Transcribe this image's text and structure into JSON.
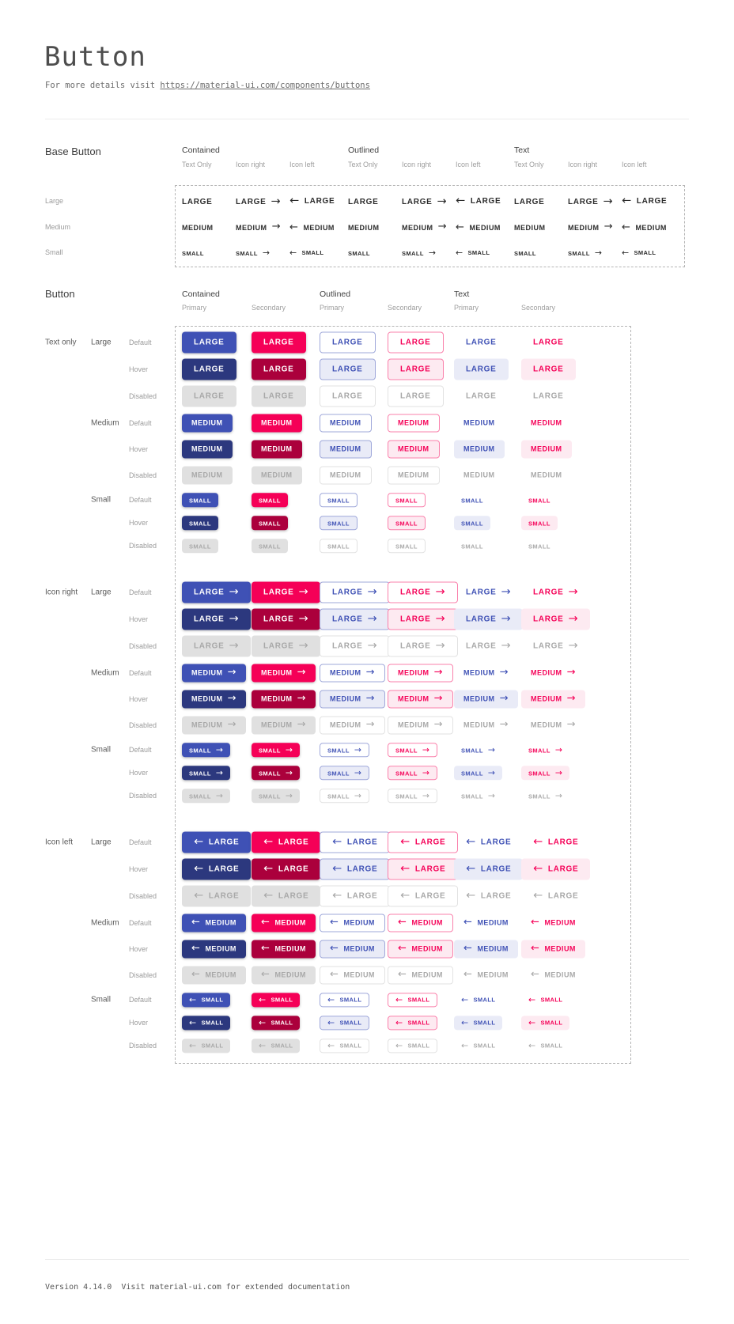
{
  "page": {
    "title": "Button",
    "subtitle_prefix": "For more details visit ",
    "subtitle_link": "https://material-ui.com/components/buttons"
  },
  "colors": {
    "primary": "#3f51b5",
    "primary_hover": "#2c387e",
    "primary_border": "#9fa8da",
    "primary_tint": "#e9ebf7",
    "secondary": "#f50057",
    "secondary_hover": "#ab003c",
    "secondary_border": "#fa80ab",
    "secondary_tint": "#fdeaf1",
    "disabled_bg": "#e0e0e0",
    "disabled_text": "#a8a8a8",
    "disabled_border": "#e2e2e2",
    "base_text": "#2b2b2b"
  },
  "icons": {
    "arrow_right": "→",
    "arrow_left": "←"
  },
  "base_section": {
    "heading": "Base Button",
    "groups": [
      {
        "label": "Contained"
      },
      {
        "label": "Outlined"
      },
      {
        "label": "Text"
      }
    ],
    "subcolumns": [
      "Text Only",
      "Icon right",
      "Icon left"
    ],
    "rows": [
      {
        "label": "Large",
        "text": "LARGE",
        "size": "large"
      },
      {
        "label": "Medium",
        "text": "MEDIUM",
        "size": "medium"
      },
      {
        "label": "Small",
        "text": "SMALL",
        "size": "small"
      }
    ]
  },
  "button_section": {
    "heading": "Button",
    "groups": [
      {
        "label": "Contained",
        "subcolumns": [
          "Primary",
          "Secondary"
        ]
      },
      {
        "label": "Outlined",
        "subcolumns": [
          "Primary",
          "Secondary"
        ]
      },
      {
        "label": "Text",
        "subcolumns": [
          "Primary",
          "Secondary"
        ]
      }
    ],
    "variants": [
      {
        "label": "Text only",
        "icon": "none"
      },
      {
        "label": "Icon right",
        "icon": "right"
      },
      {
        "label": "Icon left",
        "icon": "left"
      }
    ],
    "sizes": [
      {
        "label": "Large",
        "text": "LARGE",
        "size": "large"
      },
      {
        "label": "Medium",
        "text": "MEDIUM",
        "size": "medium"
      },
      {
        "label": "Small",
        "text": "SMALL",
        "size": "small"
      }
    ],
    "states": [
      {
        "label": "Default",
        "state": "default"
      },
      {
        "label": "Hover",
        "state": "hover"
      },
      {
        "label": "Disabled",
        "state": "disabled"
      }
    ],
    "cells": [
      {
        "variant": "contained",
        "color": "primary"
      },
      {
        "variant": "contained",
        "color": "secondary"
      },
      {
        "variant": "outlined",
        "color": "primary"
      },
      {
        "variant": "outlined",
        "color": "secondary"
      },
      {
        "variant": "text",
        "color": "primary"
      },
      {
        "variant": "text",
        "color": "secondary"
      }
    ]
  },
  "footer": {
    "text": "Version 4.14.0  Visit material-ui.com for extended documentation"
  }
}
